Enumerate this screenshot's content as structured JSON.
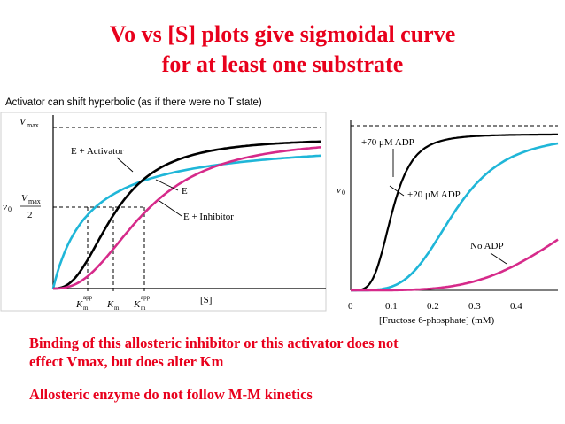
{
  "title_line1": "Vo vs [S] plots give sigmoidal curve",
  "title_line2": "for at least one substrate",
  "note": "Activator can shift hyperbolic (as if there were no T state)",
  "bottom": {
    "line1": "Binding of this allosteric inhibitor or this activator does not",
    "line2": "effect Vmax, but does alter Km",
    "line3": "Allosteric enzyme do not follow M-M kinetics"
  },
  "colors": {
    "title": "#e8001c",
    "activator": "#1fb6d8",
    "enzyme": "#000000",
    "inhibitor": "#d62a8a"
  },
  "chart_data": [
    {
      "type": "line",
      "xlabel": "[S]",
      "ylabel": "v0",
      "y_ticks": [
        "Vmax",
        "Vmax/2"
      ],
      "x_ticks": [
        "Km app",
        "Km",
        "Km app"
      ],
      "vmax": 1.0,
      "km": {
        "activator": 0.27,
        "enzyme": 0.46,
        "inhibitor": 0.68
      },
      "series": [
        {
          "name": "E + Activator",
          "color": "#1fb6d8",
          "hill": 1.0,
          "k": 0.27
        },
        {
          "name": "E",
          "color": "#000000",
          "hill": 2.5,
          "k": 0.46
        },
        {
          "name": "E + Inhibitor",
          "color": "#d62a8a",
          "hill": 2.5,
          "k": 0.68
        }
      ],
      "xlim": [
        0,
        2.0
      ],
      "ylim": [
        0,
        1.15
      ]
    },
    {
      "type": "line",
      "xlabel": "[Fructose 6-phosphate] (mM)",
      "ylabel": "v0",
      "x_ticks": [
        0,
        0.1,
        0.2,
        0.3,
        0.4
      ],
      "xlim": [
        0,
        0.5
      ],
      "ylim": [
        0,
        1.1
      ],
      "series": [
        {
          "name": "+70 μM ADP",
          "color": "#000000",
          "hill": 4,
          "k": 0.1
        },
        {
          "name": "+20 μM ADP",
          "color": "#1fb6d8",
          "hill": 4,
          "k": 0.25
        },
        {
          "name": "No ADP",
          "color": "#d62a8a",
          "hill": 4,
          "k": 0.6
        }
      ]
    }
  ]
}
